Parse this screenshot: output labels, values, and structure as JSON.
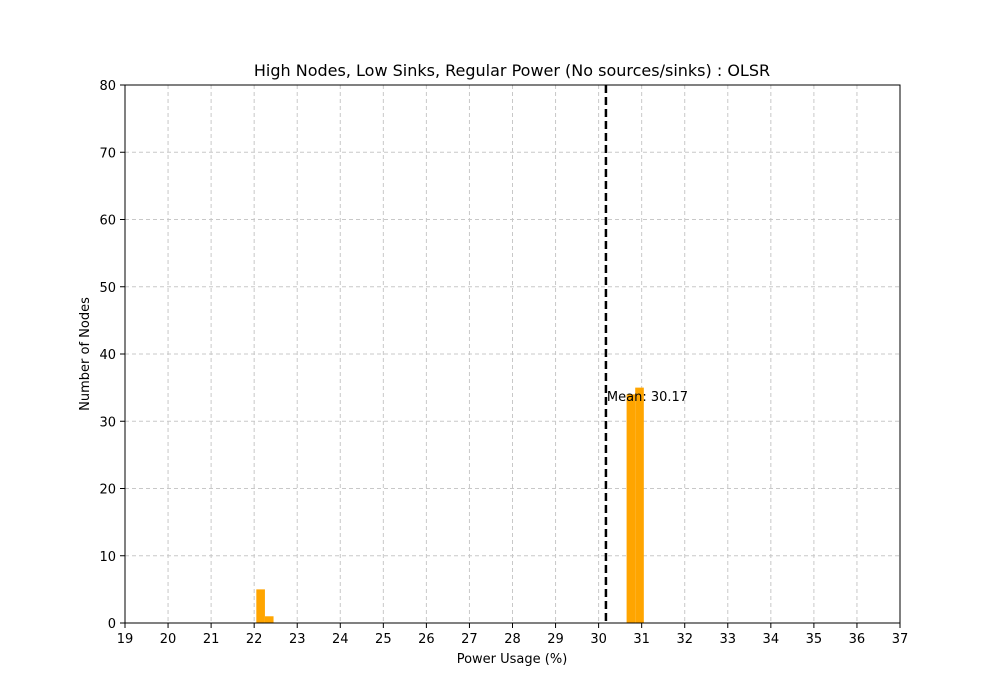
{
  "chart_data": {
    "type": "bar",
    "title": "High Nodes, Low Sinks, Regular Power (No sources/sinks) : OLSR",
    "xlabel": "Power Usage (%)",
    "ylabel": "Number of Nodes",
    "xlim": [
      19,
      37
    ],
    "ylim": [
      0,
      80
    ],
    "xticks": [
      19,
      20,
      21,
      22,
      23,
      24,
      25,
      26,
      27,
      28,
      29,
      30,
      31,
      32,
      33,
      34,
      35,
      36,
      37
    ],
    "yticks": [
      0,
      10,
      20,
      30,
      40,
      50,
      60,
      70,
      80
    ],
    "grid": true,
    "bar_color": "#FFA500",
    "bins": [
      {
        "x0": 22.05,
        "x1": 22.25,
        "count": 5
      },
      {
        "x0": 22.25,
        "x1": 22.45,
        "count": 1
      },
      {
        "x0": 30.65,
        "x1": 30.85,
        "count": 34
      },
      {
        "x0": 30.85,
        "x1": 31.05,
        "count": 35
      }
    ],
    "mean": 30.17,
    "mean_line_color": "#000000",
    "mean_label": "Mean: 30.17"
  }
}
